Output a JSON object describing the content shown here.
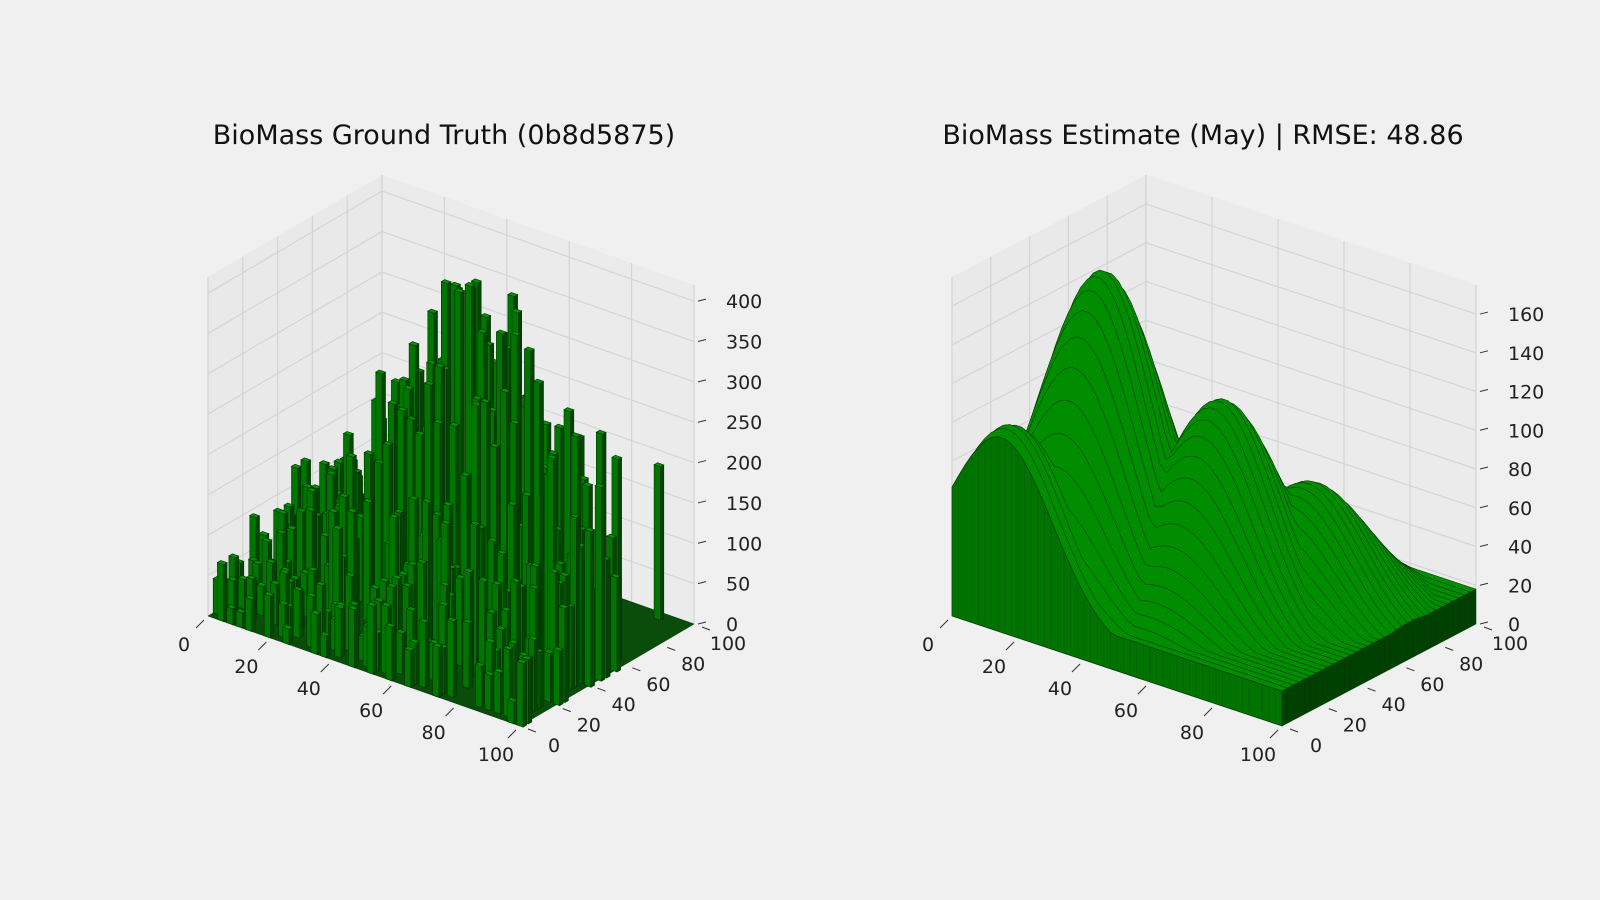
{
  "figure": {
    "background": "#f0f0f0",
    "pane_color": "#e9e9e9",
    "grid_color": "#d4d4d4",
    "bar_color": "#008000",
    "edge_color": "#003300"
  },
  "chart_data": [
    {
      "type": "bar3d",
      "title": "BioMass Ground Truth (0b8d5875)",
      "xlabel": "",
      "ylabel": "",
      "zlabel": "",
      "x_ticks": [
        "0",
        "20",
        "40",
        "60",
        "80",
        "100"
      ],
      "y_ticks": [
        "0",
        "20",
        "40",
        "60",
        "80",
        "100"
      ],
      "z_ticks": [
        "0",
        "50",
        "100",
        "150",
        "200",
        "250",
        "300",
        "350",
        "400"
      ],
      "xlim": [
        0,
        100
      ],
      "ylim": [
        0,
        100
      ],
      "zlim": [
        0,
        420
      ],
      "description_values": {
        "max_value": 420,
        "dense_region_x": [
          0,
          100
        ],
        "dense_region_y": [
          0,
          60
        ],
        "sparse_region_y": [
          60,
          100
        ],
        "isolated_spike": {
          "x": 90,
          "y": 95,
          "value": 190
        }
      }
    },
    {
      "type": "bar3d",
      "title": "BioMass Estimate (May) | RMSE: 48.86",
      "xlabel": "",
      "ylabel": "",
      "zlabel": "",
      "x_ticks": [
        "0",
        "20",
        "40",
        "60",
        "80",
        "100"
      ],
      "y_ticks": [
        "0",
        "20",
        "40",
        "60",
        "80",
        "100"
      ],
      "z_ticks": [
        "0",
        "20",
        "40",
        "60",
        "80",
        "100",
        "120",
        "140",
        "160"
      ],
      "xlim": [
        0,
        100
      ],
      "ylim": [
        0,
        100
      ],
      "zlim": [
        0,
        175
      ],
      "surface_peaks": [
        {
          "x": 15,
          "y": 5,
          "value": 95
        },
        {
          "x": 25,
          "y": 35,
          "value": 165
        },
        {
          "x": 55,
          "y": 45,
          "value": 110
        },
        {
          "x": 70,
          "y": 65,
          "value": 65
        },
        {
          "x": 50,
          "y": 90,
          "value": 15
        }
      ],
      "base_value": 18,
      "rmse": 48.86
    }
  ]
}
